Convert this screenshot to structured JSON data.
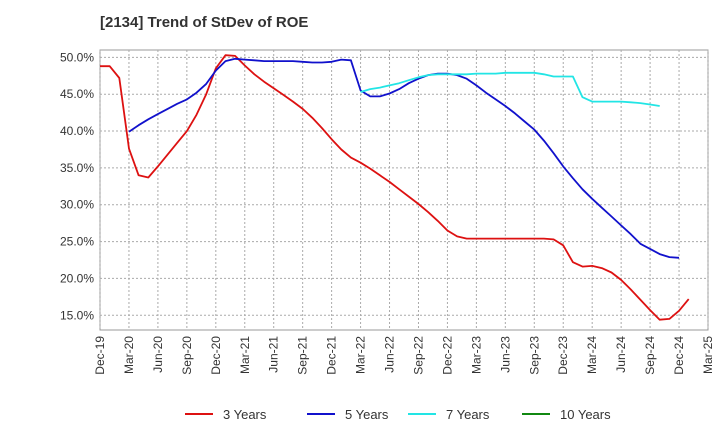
{
  "chart_data": {
    "type": "line",
    "title": "[2134]  Trend of StDev of ROE",
    "xlabel": "",
    "ylabel": "",
    "x_ticks": [
      "Dec-19",
      "Mar-20",
      "Jun-20",
      "Sep-20",
      "Dec-20",
      "Mar-21",
      "Jun-21",
      "Sep-21",
      "Dec-21",
      "Mar-22",
      "Jun-22",
      "Sep-22",
      "Dec-22",
      "Mar-23",
      "Jun-23",
      "Sep-23",
      "Dec-23",
      "Mar-24",
      "Jun-24",
      "Sep-24",
      "Dec-24",
      "Mar-25"
    ],
    "y_ticks": [
      "15.0%",
      "20.0%",
      "25.0%",
      "30.0%",
      "35.0%",
      "40.0%",
      "45.0%",
      "50.0%"
    ],
    "ylim": [
      13,
      51
    ],
    "grid": true,
    "legend_position": "bottom",
    "x_start": "Dec-19",
    "x_step_months": 1,
    "series": [
      {
        "name": "3 Years",
        "color": "#dd1111",
        "values": [
          48.8,
          48.8,
          47.2,
          37.6,
          34.0,
          33.7,
          35.2,
          36.8,
          38.4,
          40.0,
          42.2,
          45.0,
          48.5,
          50.3,
          50.2,
          48.9,
          47.7,
          46.7,
          45.8,
          44.9,
          44.0,
          43.0,
          41.8,
          40.4,
          38.9,
          37.5,
          36.4,
          35.7,
          34.9,
          34.0,
          33.1,
          32.1,
          31.1,
          30.1,
          29.0,
          27.8,
          26.5,
          25.7,
          25.4,
          25.4,
          25.4,
          25.4,
          25.4,
          25.4,
          25.4,
          25.4,
          25.4,
          25.3,
          24.5,
          22.2,
          21.6,
          21.7,
          21.4,
          20.8,
          19.8,
          18.5,
          17.1,
          15.7,
          14.4,
          14.5,
          15.6,
          17.2
        ]
      },
      {
        "name": "5 Years",
        "color": "#1111cc",
        "values": [
          null,
          null,
          null,
          39.9,
          40.8,
          41.6,
          42.3,
          43.0,
          43.7,
          44.3,
          45.2,
          46.4,
          48.2,
          49.5,
          49.8,
          49.7,
          49.6,
          49.5,
          49.5,
          49.5,
          49.5,
          49.4,
          49.3,
          49.3,
          49.4,
          49.7,
          49.6,
          45.5,
          44.7,
          44.7,
          45.1,
          45.7,
          46.5,
          47.1,
          47.6,
          47.8,
          47.8,
          47.6,
          47.1,
          46.2,
          45.2,
          44.3,
          43.4,
          42.4,
          41.3,
          40.2,
          38.7,
          37.0,
          35.2,
          33.6,
          32.1,
          30.8,
          29.6,
          28.4,
          27.2,
          26.0,
          24.7,
          24.0,
          23.3,
          22.9,
          22.8
        ]
      },
      {
        "name": "7 Years",
        "color": "#22e5e5",
        "values": [
          null,
          null,
          null,
          null,
          null,
          null,
          null,
          null,
          null,
          null,
          null,
          null,
          null,
          null,
          null,
          null,
          null,
          null,
          null,
          null,
          null,
          null,
          null,
          null,
          null,
          null,
          null,
          45.3,
          45.7,
          45.9,
          46.2,
          46.5,
          46.9,
          47.3,
          47.6,
          47.7,
          47.7,
          47.7,
          47.7,
          47.8,
          47.8,
          47.8,
          47.9,
          47.9,
          47.9,
          47.9,
          47.7,
          47.4,
          47.4,
          47.4,
          44.6,
          44.0,
          44.0,
          44.0,
          44.0,
          43.9,
          43.8,
          43.6,
          43.4
        ]
      },
      {
        "name": "10 Years",
        "color": "#118811",
        "values": []
      }
    ]
  }
}
